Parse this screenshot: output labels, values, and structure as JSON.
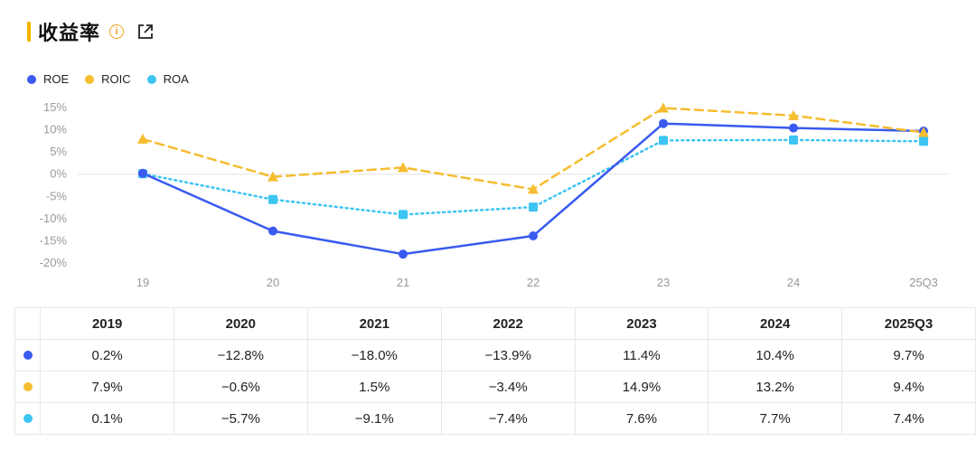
{
  "header": {
    "title": "收益率",
    "info_icon": "info-icon",
    "share_icon": "share-icon"
  },
  "colors": {
    "accent": "#f5b400",
    "roe": "#3a5af0",
    "roic": "#f5bd2f",
    "roa": "#3cc4f2"
  },
  "chart_data": {
    "type": "line",
    "categories": [
      "19",
      "20",
      "21",
      "22",
      "23",
      "24",
      "25Q3"
    ],
    "series": [
      {
        "name": "ROE",
        "values": [
          0.2,
          -12.8,
          -18.0,
          -13.9,
          11.4,
          10.4,
          9.7
        ],
        "color": "#3a5af0",
        "style": "solid",
        "marker": "circle"
      },
      {
        "name": "ROIC",
        "values": [
          7.9,
          -0.6,
          1.5,
          -3.4,
          14.9,
          13.2,
          9.4
        ],
        "color": "#f5bd2f",
        "style": "dashed",
        "marker": "triangle"
      },
      {
        "name": "ROA",
        "values": [
          0.1,
          -5.7,
          -9.1,
          -7.4,
          7.6,
          7.7,
          7.4
        ],
        "color": "#3cc4f2",
        "style": "dotted",
        "marker": "square"
      }
    ],
    "yticks": [
      "15%",
      "10%",
      "5%",
      "0%",
      "-5%",
      "-10%",
      "-15%",
      "-20%"
    ],
    "ylim": [
      -20,
      15
    ],
    "legend": "top-left",
    "grid": false
  },
  "table": {
    "headers": [
      "2019",
      "2020",
      "2021",
      "2022",
      "2023",
      "2024",
      "2025Q3"
    ],
    "rows": [
      [
        "0.2%",
        "−12.8%",
        "−18.0%",
        "−13.9%",
        "11.4%",
        "10.4%",
        "9.7%"
      ],
      [
        "7.9%",
        "−0.6%",
        "1.5%",
        "−3.4%",
        "14.9%",
        "13.2%",
        "9.4%"
      ],
      [
        "0.1%",
        "−5.7%",
        "−9.1%",
        "−7.4%",
        "7.6%",
        "7.7%",
        "7.4%"
      ]
    ]
  }
}
